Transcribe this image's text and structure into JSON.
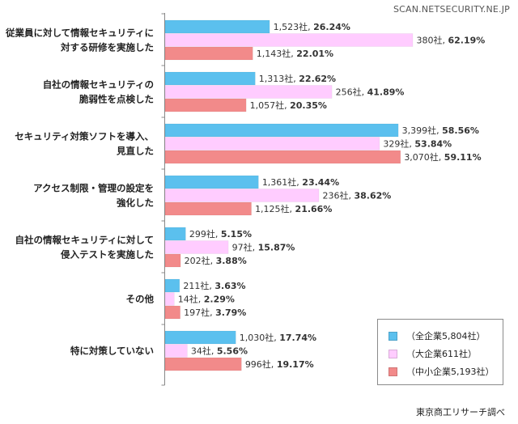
{
  "watermark": "SCAN.NETSECURITY.NE.JP",
  "source": "東京商工リサーチ調べ",
  "colors": {
    "large": "#5bc0ee",
    "mid": "#ffccff",
    "small": "#f28a8a",
    "axis": "#888888"
  },
  "chart_data": {
    "type": "bar",
    "orientation": "horizontal",
    "title": "",
    "xlabel": "",
    "ylabel": "",
    "xlim": [
      0,
      65
    ],
    "value_unit": "percent",
    "categories": [
      [
        "従業員に対して情報セキュリティに",
        "対する研修を実施した"
      ],
      [
        "自社の情報セキュリティの",
        "脆弱性を点検した"
      ],
      [
        "セキュリティ対策ソフトを導入、",
        "見直した"
      ],
      [
        "アクセス制限・管理の設定を",
        "強化した"
      ],
      [
        "自社の情報セキュリティに対して",
        "侵入テストを実施した"
      ],
      [
        "その他"
      ],
      [
        "特に対策していない"
      ]
    ],
    "series": [
      {
        "name": "（全企業5,804社）",
        "color_key": "large",
        "values": [
          26.24,
          22.62,
          58.56,
          23.44,
          5.15,
          3.63,
          17.74
        ],
        "counts": [
          "1,523社",
          "1,313社",
          "3,399社",
          "1,361社",
          "299社",
          "211社",
          "1,030社"
        ],
        "pct_labels": [
          "26.24%",
          "22.62%",
          "58.56%",
          "23.44%",
          "5.15%",
          "3.63%",
          "17.74%"
        ]
      },
      {
        "name": "（大企業611社）",
        "color_key": "mid",
        "values": [
          62.19,
          41.89,
          53.84,
          38.62,
          15.87,
          2.29,
          5.56
        ],
        "counts": [
          "380社",
          "256社",
          "329社",
          "236社",
          "97社",
          "14社",
          "34社"
        ],
        "pct_labels": [
          "62.19%",
          "41.89%",
          "53.84%",
          "38.62%",
          "15.87%",
          "2.29%",
          "5.56%"
        ]
      },
      {
        "name": "（中小企業5,193社）",
        "color_key": "small",
        "values": [
          22.01,
          20.35,
          59.11,
          21.66,
          3.88,
          3.79,
          19.17
        ],
        "counts": [
          "1,143社",
          "1,057社",
          "3,070社",
          "1,125社",
          "202社",
          "197社",
          "996社"
        ],
        "pct_labels": [
          "22.01%",
          "20.35%",
          "59.11%",
          "21.66%",
          "3.88%",
          "3.79%",
          "19.17%"
        ]
      }
    ],
    "legend_position": "bottom-right",
    "grid": false
  }
}
